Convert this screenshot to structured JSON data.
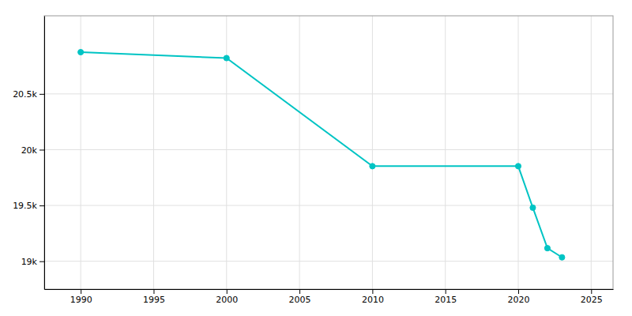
{
  "chart_data": {
    "type": "line",
    "x": [
      1990,
      2000,
      2010,
      2020,
      2021,
      2022,
      2023
    ],
    "values": [
      20874,
      20821,
      19852,
      19852,
      19480,
      19117,
      19035
    ],
    "color": "#00C4C4",
    "marker": "circle",
    "xlim": [
      1987.5,
      2026.5
    ],
    "xticks": [
      1990,
      1995,
      2000,
      2005,
      2010,
      2015,
      2020,
      2025
    ],
    "ylim": [
      18750,
      21200
    ],
    "yticks": [
      {
        "value": 19000,
        "label": "19k"
      },
      {
        "value": 19500,
        "label": "19.5k"
      },
      {
        "value": 20000,
        "label": "20k"
      },
      {
        "value": 20500,
        "label": "20.5k"
      }
    ],
    "grid": true
  }
}
